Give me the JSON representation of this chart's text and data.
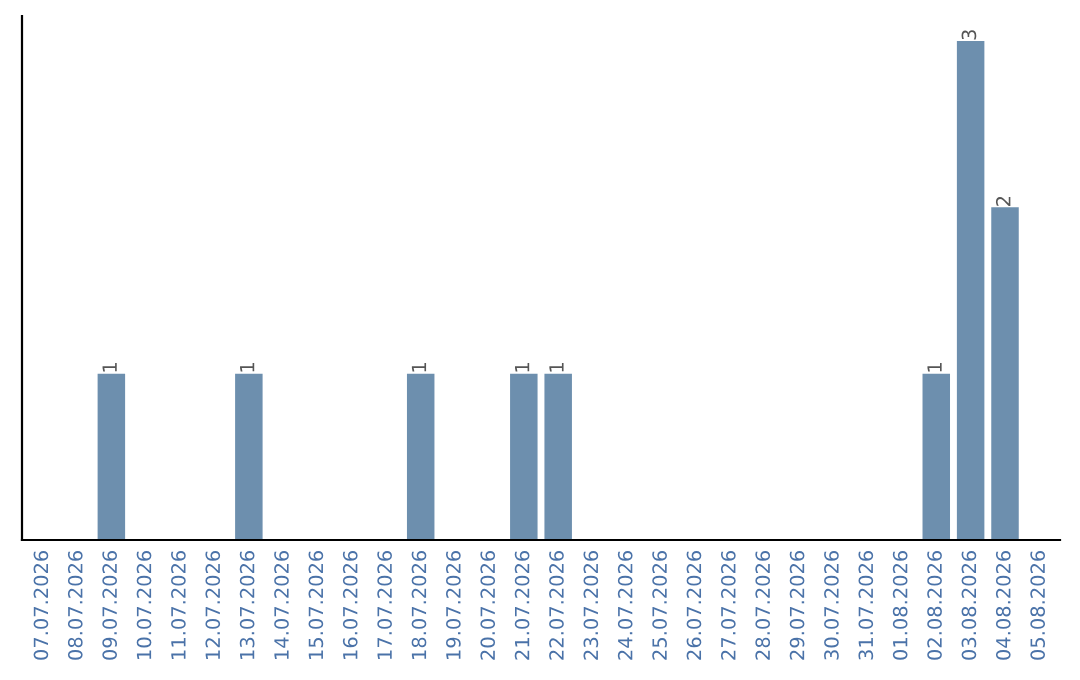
{
  "chart_data": {
    "type": "bar",
    "categories": [
      "07.07.2026",
      "08.07.2026",
      "09.07.2026",
      "10.07.2026",
      "11.07.2026",
      "12.07.2026",
      "13.07.2026",
      "14.07.2026",
      "15.07.2026",
      "16.07.2026",
      "17.07.2026",
      "18.07.2026",
      "19.07.2026",
      "20.07.2026",
      "21.07.2026",
      "22.07.2026",
      "23.07.2026",
      "24.07.2026",
      "25.07.2026",
      "26.07.2026",
      "27.07.2026",
      "28.07.2026",
      "29.07.2026",
      "30.07.2026",
      "31.07.2026",
      "01.08.2026",
      "02.08.2026",
      "03.08.2026",
      "04.08.2026",
      "05.08.2026"
    ],
    "values": [
      0,
      0,
      1,
      0,
      0,
      0,
      1,
      0,
      0,
      0,
      0,
      1,
      0,
      0,
      1,
      1,
      0,
      0,
      0,
      0,
      0,
      0,
      0,
      0,
      0,
      0,
      1,
      3,
      2,
      0
    ],
    "value_labels": [
      null,
      null,
      "1",
      null,
      null,
      null,
      "1",
      null,
      null,
      null,
      null,
      "1",
      null,
      null,
      "1",
      "1",
      null,
      null,
      null,
      null,
      null,
      null,
      null,
      null,
      null,
      null,
      "1",
      "3",
      "2",
      null
    ],
    "color": "#6d8fae",
    "grid": false,
    "legend": false
  }
}
